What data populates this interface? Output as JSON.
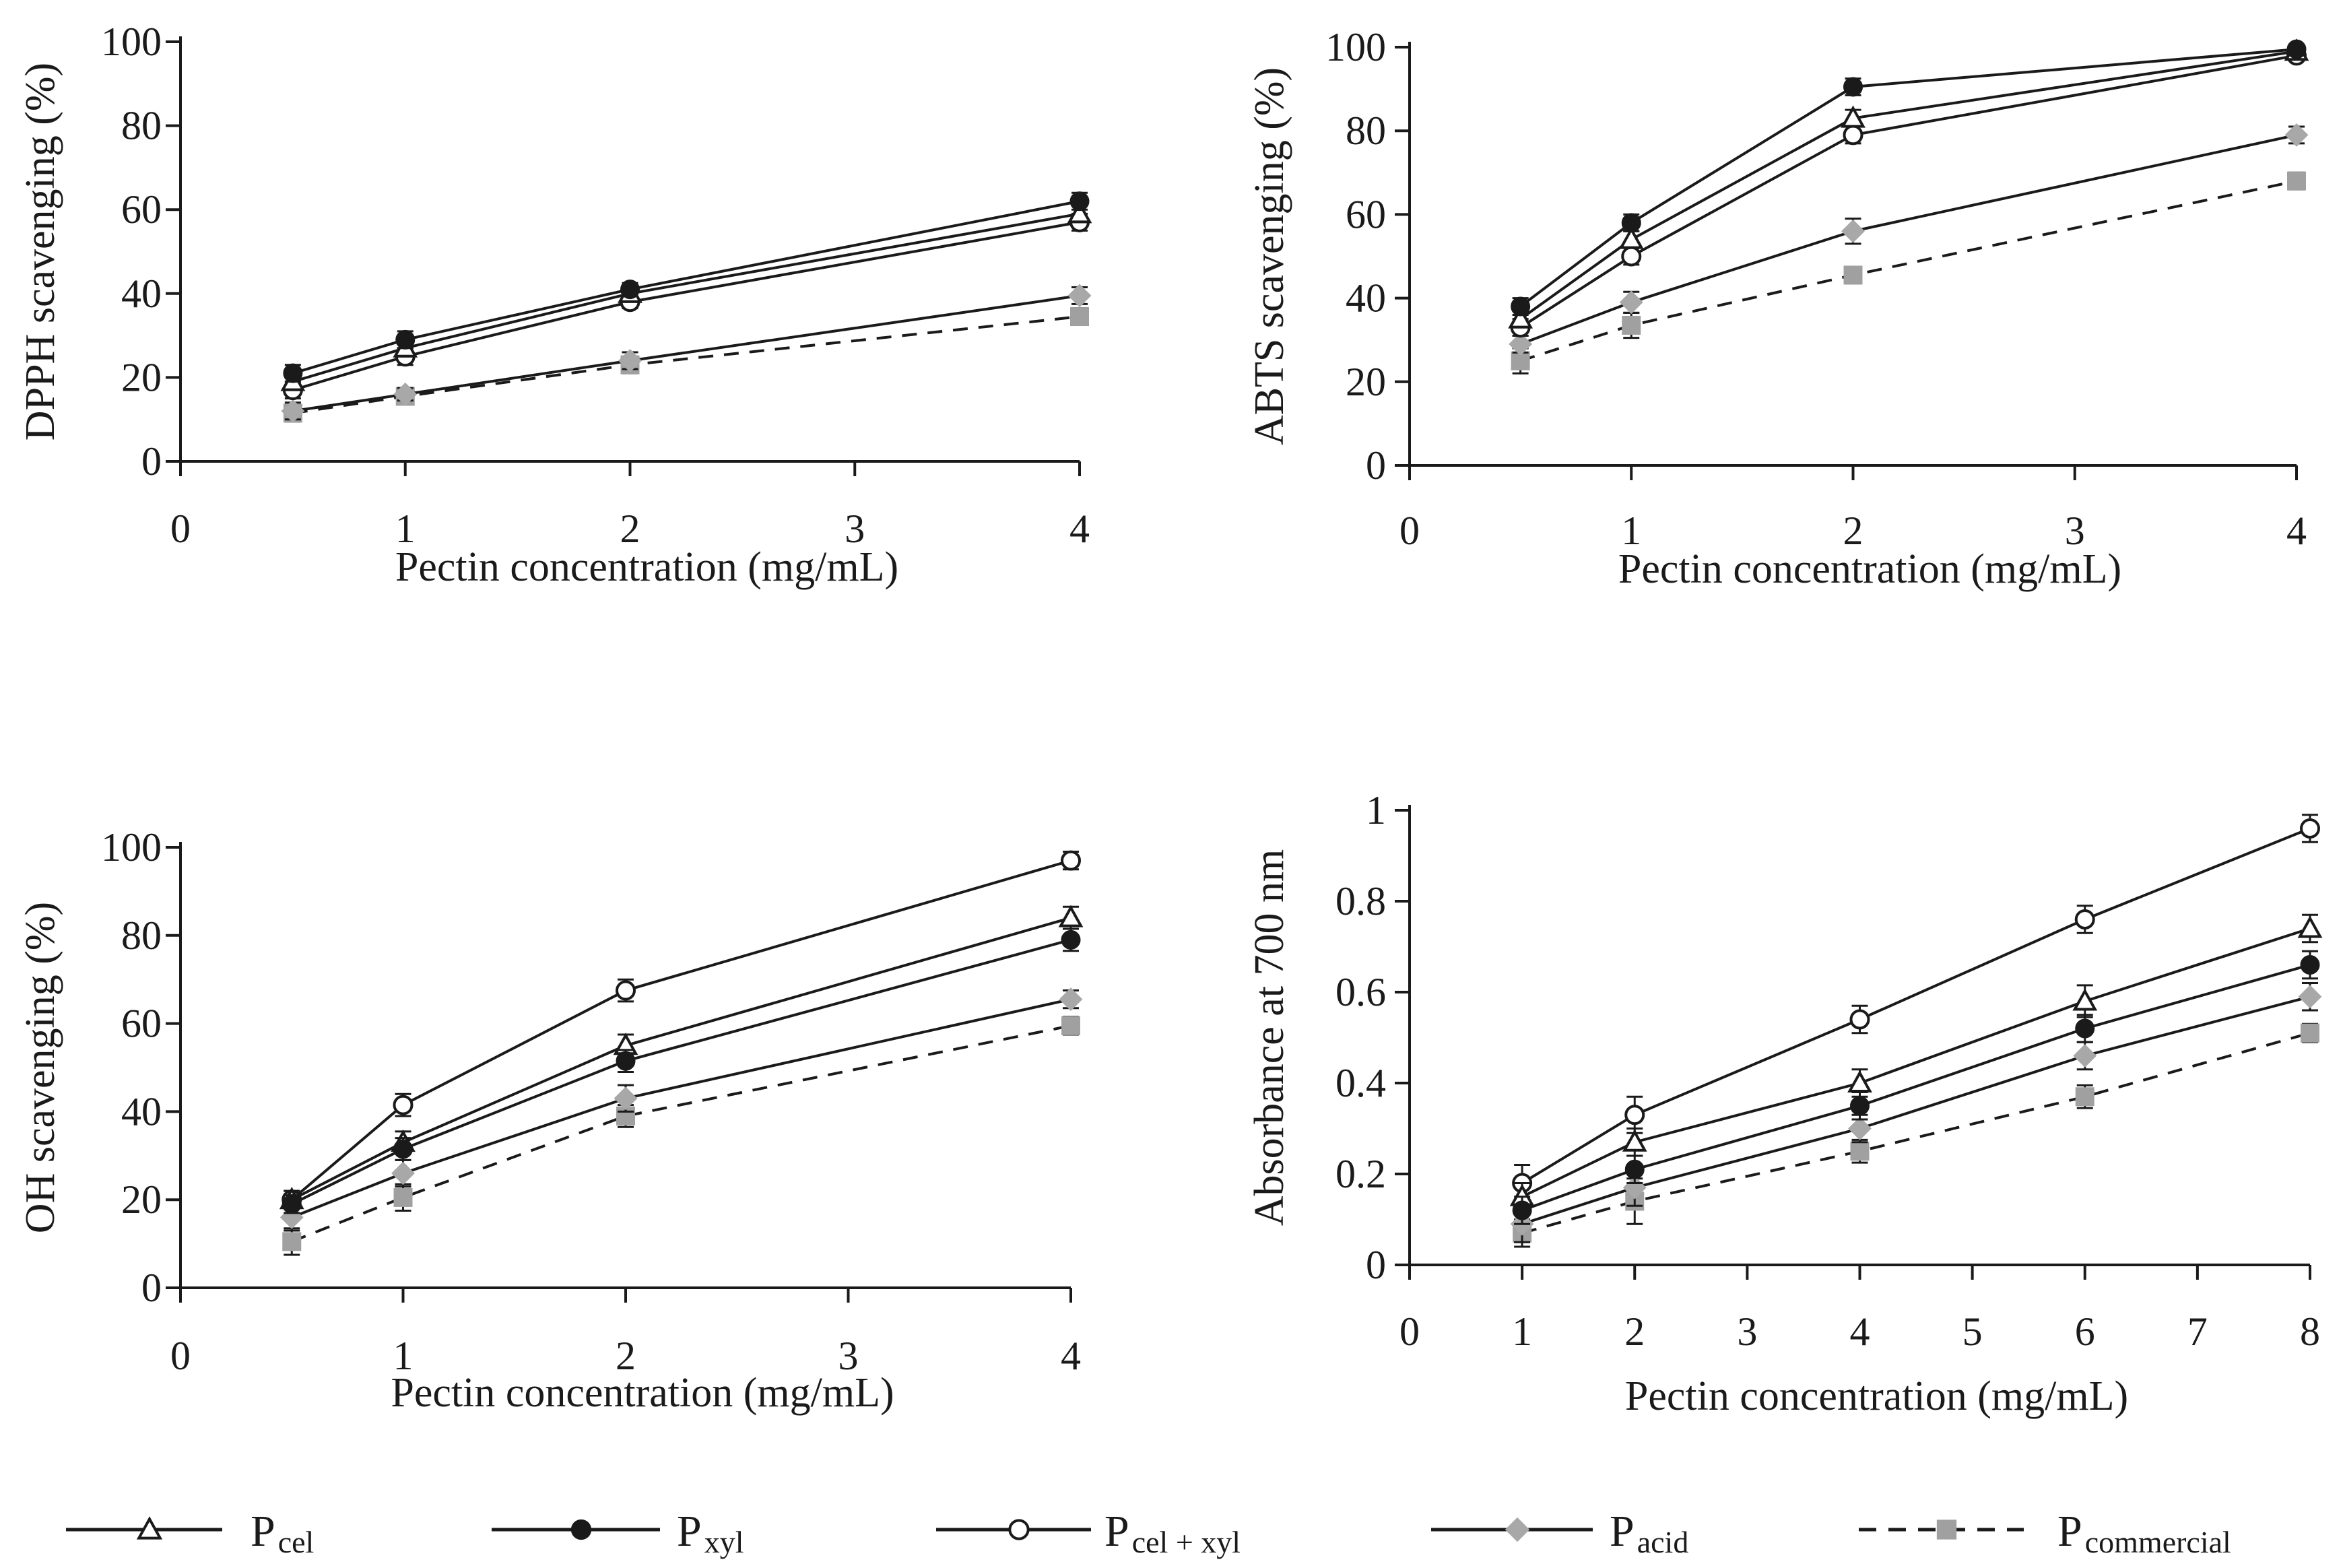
{
  "legend": [
    {
      "key": "cel",
      "main": "P",
      "sub": "cel",
      "marker": "triangle-open",
      "dash": false
    },
    {
      "key": "xyl",
      "main": "P",
      "sub": "xyl",
      "marker": "circle-filled",
      "dash": false
    },
    {
      "key": "celxyl",
      "main": "P",
      "sub": "cel + xyl",
      "marker": "circle-open",
      "dash": false
    },
    {
      "key": "acid",
      "main": "P",
      "sub": "acid",
      "marker": "diamond-gray",
      "dash": false
    },
    {
      "key": "commercial",
      "main": "P",
      "sub": "commercial",
      "marker": "square-gray",
      "dash": true
    }
  ],
  "chart_data": [
    {
      "id": "dpph",
      "type": "line",
      "xlabel": "Pectin concentration (mg/mL)",
      "ylabel": "DPPH scavenging (%)",
      "x_ticks": [
        "0",
        "1",
        "2",
        "3",
        "4"
      ],
      "x_tick_values": [
        0,
        1,
        2,
        3,
        4
      ],
      "y_ticks": [
        "0",
        "20",
        "40",
        "60",
        "80",
        "100"
      ],
      "xlim": [
        0,
        4
      ],
      "ylim": [
        0,
        100
      ],
      "x": [
        0.5,
        1,
        2,
        4
      ],
      "series": [
        {
          "name": "cel",
          "values": [
            19,
            27,
            40,
            59
          ],
          "errors": [
            2,
            2,
            2,
            2
          ]
        },
        {
          "name": "xyl",
          "values": [
            21,
            29,
            41,
            62
          ],
          "errors": [
            2,
            2,
            1.5,
            2
          ]
        },
        {
          "name": "celxyl",
          "values": [
            17,
            25,
            38,
            57
          ],
          "errors": [
            2,
            2,
            1.5,
            2
          ]
        },
        {
          "name": "acid",
          "values": [
            12,
            16,
            24,
            39.5
          ],
          "errors": [
            2,
            1.5,
            2,
            2
          ]
        },
        {
          "name": "commercial",
          "values": [
            11.5,
            15.5,
            23,
            34.5
          ],
          "errors": [
            2,
            1.5,
            2,
            2
          ]
        }
      ]
    },
    {
      "id": "abts",
      "type": "line",
      "xlabel": "Pectin concentration (mg/mL)",
      "ylabel": "ABTS scavenging (%)",
      "x_ticks": [
        "0",
        "1",
        "2",
        "3",
        "4"
      ],
      "x_tick_values": [
        0,
        1,
        2,
        3,
        4
      ],
      "y_ticks": [
        "0",
        "20",
        "40",
        "60",
        "80",
        "100"
      ],
      "xlim": [
        0,
        4
      ],
      "ylim": [
        0,
        100
      ],
      "x": [
        0.5,
        1,
        2,
        4
      ],
      "series": [
        {
          "name": "cel",
          "values": [
            35,
            54,
            83,
            99
          ],
          "errors": [
            2,
            2,
            2,
            1
          ]
        },
        {
          "name": "xyl",
          "values": [
            38,
            58,
            90.5,
            99.5
          ],
          "errors": [
            2,
            2,
            2,
            1
          ]
        },
        {
          "name": "celxyl",
          "values": [
            33,
            50,
            79,
            98
          ],
          "errors": [
            2,
            2,
            2,
            1
          ]
        },
        {
          "name": "acid",
          "values": [
            29,
            39,
            56,
            79
          ],
          "errors": [
            2,
            2.5,
            3,
            2
          ]
        },
        {
          "name": "commercial",
          "values": [
            25,
            33.5,
            45.5,
            68
          ],
          "errors": [
            3,
            3,
            2,
            2
          ]
        }
      ]
    },
    {
      "id": "oh",
      "type": "line",
      "xlabel": "Pectin concentration (mg/mL)",
      "ylabel": "OH scavenging (%)",
      "x_ticks": [
        "0",
        "1",
        "2",
        "3",
        "4"
      ],
      "x_tick_values": [
        0,
        1,
        2,
        3,
        4
      ],
      "y_ticks": [
        "0",
        "20",
        "40",
        "60",
        "80",
        "100"
      ],
      "xlim": [
        0,
        4
      ],
      "ylim": [
        0,
        100
      ],
      "x": [
        0.5,
        1,
        2,
        4
      ],
      "series": [
        {
          "name": "cel",
          "values": [
            20,
            33,
            55,
            84
          ],
          "errors": [
            2,
            2.5,
            2.5,
            2.5
          ]
        },
        {
          "name": "xyl",
          "values": [
            19,
            31.5,
            51.5,
            79
          ],
          "errors": [
            2,
            2.5,
            2.5,
            2.5
          ]
        },
        {
          "name": "celxyl",
          "values": [
            20,
            41.5,
            67.5,
            97
          ],
          "errors": [
            2,
            2.5,
            2.5,
            2
          ]
        },
        {
          "name": "acid",
          "values": [
            16,
            26,
            43,
            65.5
          ],
          "errors": [
            3,
            3,
            3,
            2
          ]
        },
        {
          "name": "commercial",
          "values": [
            10.5,
            20.5,
            39,
            59.5
          ],
          "errors": [
            3,
            3,
            2.5,
            2
          ]
        }
      ]
    },
    {
      "id": "absorbance",
      "type": "line",
      "xlabel": "Pectin concentration (mg/mL)",
      "ylabel": "Absorbance at 700 nm",
      "x_ticks": [
        "0",
        "1",
        "2",
        "3",
        "4",
        "5",
        "6",
        "7",
        "8"
      ],
      "x_tick_values": [
        0,
        1,
        2,
        3,
        4,
        5,
        6,
        7,
        8
      ],
      "y_ticks": [
        "0",
        "0.2",
        "0.4",
        "0.6",
        "0.8",
        "1"
      ],
      "xlim": [
        0,
        8
      ],
      "ylim": [
        0,
        1
      ],
      "x": [
        1,
        2,
        4,
        6,
        8
      ],
      "series": [
        {
          "name": "cel",
          "values": [
            0.15,
            0.27,
            0.4,
            0.58,
            0.74
          ],
          "errors": [
            0.03,
            0.03,
            0.03,
            0.035,
            0.03
          ]
        },
        {
          "name": "xyl",
          "values": [
            0.12,
            0.21,
            0.35,
            0.52,
            0.66
          ],
          "errors": [
            0.03,
            0.03,
            0.03,
            0.03,
            0.03
          ]
        },
        {
          "name": "celxyl",
          "values": [
            0.18,
            0.33,
            0.54,
            0.76,
            0.96
          ],
          "errors": [
            0.04,
            0.04,
            0.03,
            0.03,
            0.03
          ]
        },
        {
          "name": "acid",
          "values": [
            0.09,
            0.17,
            0.3,
            0.46,
            0.59
          ],
          "errors": [
            0.04,
            0.04,
            0.03,
            0.03,
            0.03
          ]
        },
        {
          "name": "commercial",
          "values": [
            0.07,
            0.14,
            0.25,
            0.37,
            0.51
          ],
          "errors": [
            0.03,
            0.05,
            0.025,
            0.025,
            0.02
          ]
        }
      ]
    }
  ]
}
